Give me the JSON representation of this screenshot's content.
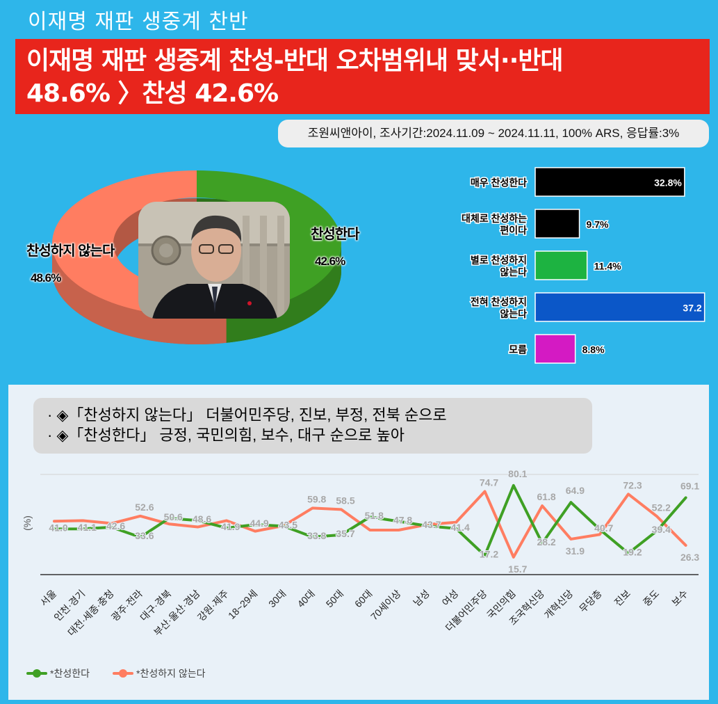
{
  "top_title": "이재명 재판 생중계 찬반",
  "headline": {
    "line1": "이재명 재판 생중계 찬성-반대 오차범위내 맞서··반대",
    "line2": "48.6% 〉찬성 42.6%"
  },
  "source": "조원씨앤아이, 조사기간:2024.11.09 ~ 2024.11.11, 100% ARS, 응답률:3%",
  "colors": {
    "green": "#3fa024",
    "salmon": "#ff7d61",
    "background": "#2eb6ea",
    "headline": "#e8251c"
  },
  "photo_icon": "person-photo-icon",
  "chart_data": [
    {
      "type": "pie",
      "labels": [
        "찬성한다",
        "찬성하지 않는다"
      ],
      "values": [
        42.6,
        48.6
      ],
      "value_labels": [
        "42.6%",
        "48.6%"
      ],
      "colors": [
        "#3fa024",
        "#ff7d61"
      ]
    },
    {
      "type": "bar",
      "orientation": "horizontal",
      "categories": [
        [
          "매우 찬성한다"
        ],
        [
          "대체로 찬성하는",
          "편이다"
        ],
        [
          "별로 찬성하지",
          "않는다"
        ],
        [
          "전혀 찬성하지",
          "않는다"
        ],
        [
          "모름"
        ]
      ],
      "values": [
        32.8,
        9.7,
        11.4,
        37.2,
        8.8
      ],
      "value_labels": [
        "32.8%",
        "9.7%",
        "11.4%",
        "37.2",
        "8.8%"
      ],
      "colors": [
        "#000000",
        "#000000",
        "#1db341",
        "#0b57c8",
        "#d41ac3"
      ]
    },
    {
      "type": "line",
      "ylabel": "(%)",
      "notes": [
        "· ◈「찬성하지 않는다」 더불어민주당, 진보, 부정, 전북 순으로",
        "· ◈「찬성한다」 긍정, 국민의힘, 보수, 대구 순으로 높아"
      ],
      "categories": [
        "서울",
        "인천·경기",
        "대전·세종·충청",
        "광주·전라",
        "대구·경북",
        "부산·울산·경남",
        "강원·제주",
        "18~29세",
        "30대",
        "40대",
        "50대",
        "60대",
        "70세이상",
        "남성",
        "여성",
        "더불어민주당",
        "국민의힘",
        "조국혁신당",
        "개혁신당",
        "무당층",
        "진보",
        "중도",
        "보수"
      ],
      "series": [
        {
          "name": "*찬성한다",
          "color": "#3fa024",
          "values": [
            41.0,
            41.1,
            42.6,
            33.6,
            50.6,
            48.6,
            41.9,
            44.9,
            43.5,
            33.8,
            35.7,
            51.8,
            47.8,
            43.7,
            41.4,
            17.2,
            80.1,
            28.2,
            64.9,
            40.7,
            19.2,
            39.4,
            69.1
          ]
        },
        {
          "name": "*찬성하지 않는다",
          "color": "#ff7d61",
          "values": [
            48.0,
            48.5,
            46.0,
            52.6,
            45.5,
            42.8,
            48.5,
            39.0,
            44.0,
            59.8,
            58.5,
            40.0,
            40.0,
            45.0,
            47.0,
            74.7,
            15.7,
            61.8,
            31.9,
            36.0,
            72.3,
            52.2,
            26.3
          ]
        }
      ],
      "value_labels": [
        "41.0",
        "41.1",
        "42.6",
        "33.6",
        "50.6",
        "48.6",
        "41.9",
        "44.9",
        "43.5",
        "33.8",
        "35.7",
        "51.8",
        "47.8",
        "43.7",
        "41.4",
        "17.2",
        "80.1",
        "28.2",
        "64.9",
        "40.7",
        "19.2",
        "39.4",
        "69.1"
      ],
      "value_labels_b": [
        "",
        "",
        "",
        "52.6",
        "",
        "",
        "",
        "",
        "",
        "59.8",
        "58.5",
        "",
        "",
        "",
        "",
        "74.7",
        "15.7",
        "61.8",
        "31.9",
        "",
        "72.3",
        "52.2",
        "26.3"
      ],
      "ylim": [
        0,
        95
      ],
      "grid": true,
      "legend": "bottom-left"
    }
  ]
}
